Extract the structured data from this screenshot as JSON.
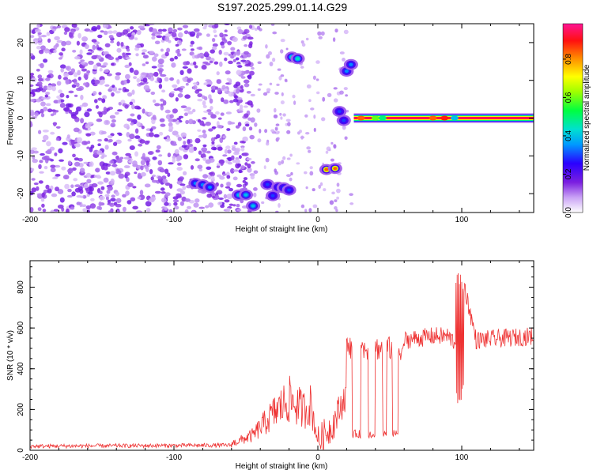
{
  "title": "S197.2025.299.01.14.G29",
  "chart_data": [
    {
      "type": "heatmap",
      "name": "spectrogram",
      "xlabel": "Height of straight line (km)",
      "ylabel": "Frequency (Hz)",
      "xlim": [
        -200,
        150
      ],
      "ylim": [
        -25,
        25
      ],
      "xticks": [
        -200,
        -100,
        0,
        100
      ],
      "yticks": [
        -20,
        -10,
        0,
        10,
        20
      ],
      "colorbar": {
        "label": "Normalized spectral amplitude",
        "range": [
          0,
          1
        ],
        "ticks": [
          "0.0",
          "0.2",
          "0.4",
          "0.6",
          "0.8"
        ]
      },
      "features": [
        {
          "x": [
            -85,
            -75
          ],
          "freq": -17,
          "amp": 0.35
        },
        {
          "x": [
            -55,
            -45
          ],
          "freq": -22,
          "amp": 0.4
        },
        {
          "x": [
            -35,
            -20
          ],
          "freq": -19,
          "amp": 0.3
        },
        {
          "x": [
            -18,
            -14
          ],
          "freq": 15,
          "amp": 0.45
        },
        {
          "x": [
            6,
            12
          ],
          "freq": -13,
          "amp": 0.85
        },
        {
          "x": [
            15,
            18
          ],
          "freq": 0,
          "amp": 0.3
        },
        {
          "x": [
            20,
            23
          ],
          "freq": 13,
          "amp": 0.35
        },
        {
          "x": [
            25,
            150
          ],
          "freq": 0,
          "amp": 0.95
        }
      ]
    },
    {
      "type": "line",
      "name": "snr",
      "xlabel": "Height of straight line (km)",
      "ylabel": "SNR (10 * v/v)",
      "xlim": [
        -200,
        150
      ],
      "ylim": [
        0,
        930
      ],
      "xticks": [
        -200,
        -100,
        0,
        100
      ],
      "yticks": [
        0,
        200,
        400,
        600,
        800
      ],
      "color": "#ee3333",
      "series": [
        {
          "name": "SNR",
          "x": [
            -200,
            -60,
            -45,
            -30,
            -20,
            -10,
            -5,
            0,
            10,
            20,
            30,
            40,
            50,
            55,
            60,
            80,
            90,
            97,
            99,
            110,
            150
          ],
          "y": [
            20,
            25,
            60,
            150,
            200,
            160,
            180,
            40,
            120,
            280,
            520,
            80,
            560,
            80,
            540,
            560,
            560,
            520,
            900,
            540,
            560
          ]
        }
      ]
    }
  ]
}
